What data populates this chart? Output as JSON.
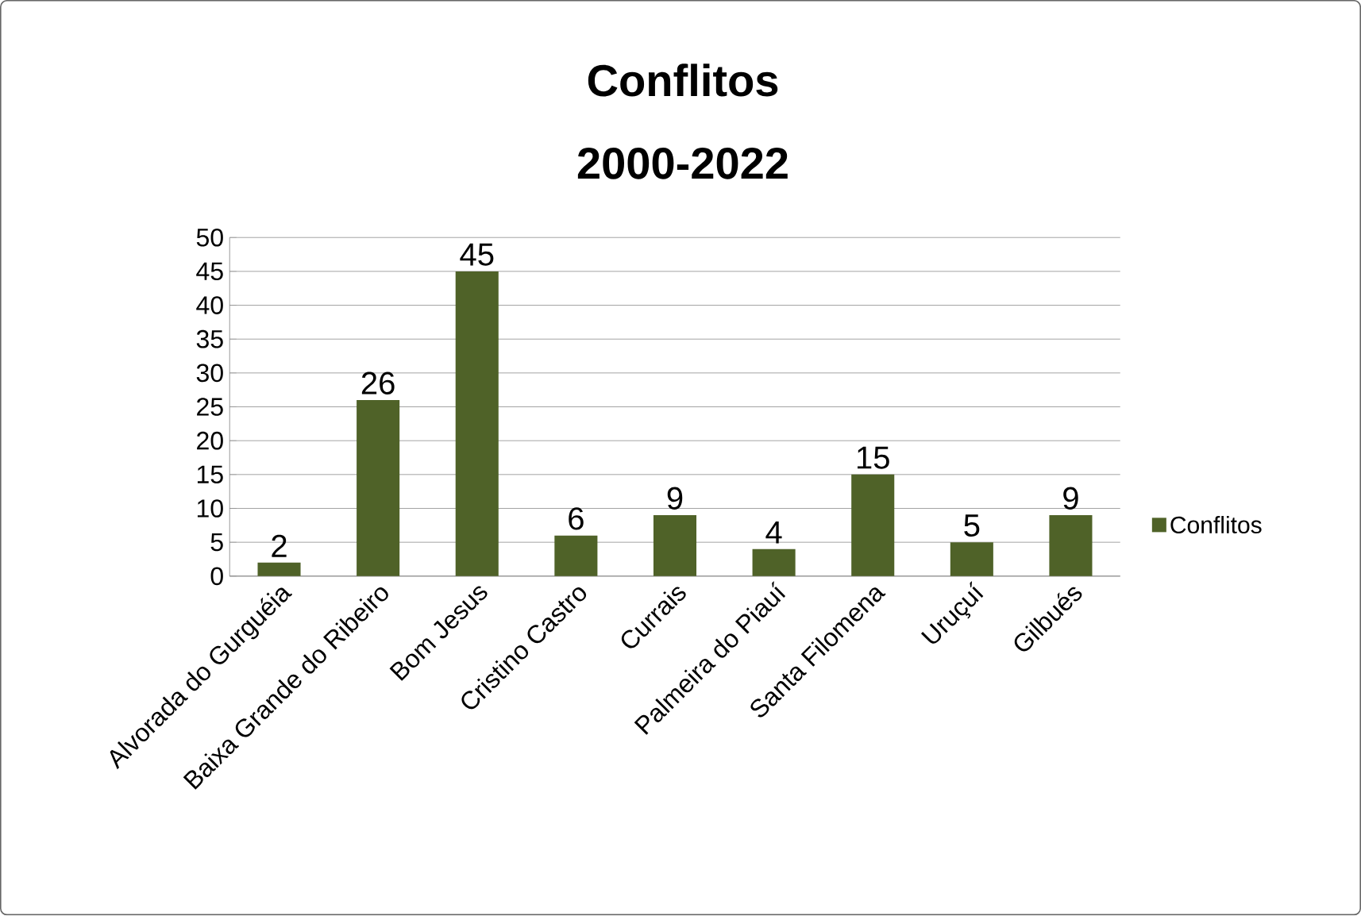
{
  "chart_data": {
    "type": "bar",
    "title": "Conflitos 2000-2022",
    "categories": [
      "Alvorada do Gurguéia",
      "Baixa Grande do Ribeiro",
      "Bom Jesus",
      "Cristino Castro",
      "Currais",
      "Palmeira do Piauí",
      "Santa Filomena",
      "Uruçuí",
      "Gilbués"
    ],
    "series": [
      {
        "name": "Conflitos",
        "color": "#4f6228",
        "values": [
          2,
          26,
          45,
          6,
          9,
          4,
          15,
          5,
          9
        ]
      }
    ],
    "ylim": [
      0,
      50
    ],
    "yticks": [
      0,
      5,
      10,
      15,
      20,
      25,
      30,
      35,
      40,
      45,
      50
    ],
    "grid": "y",
    "legend": "right",
    "data_labels": true
  }
}
